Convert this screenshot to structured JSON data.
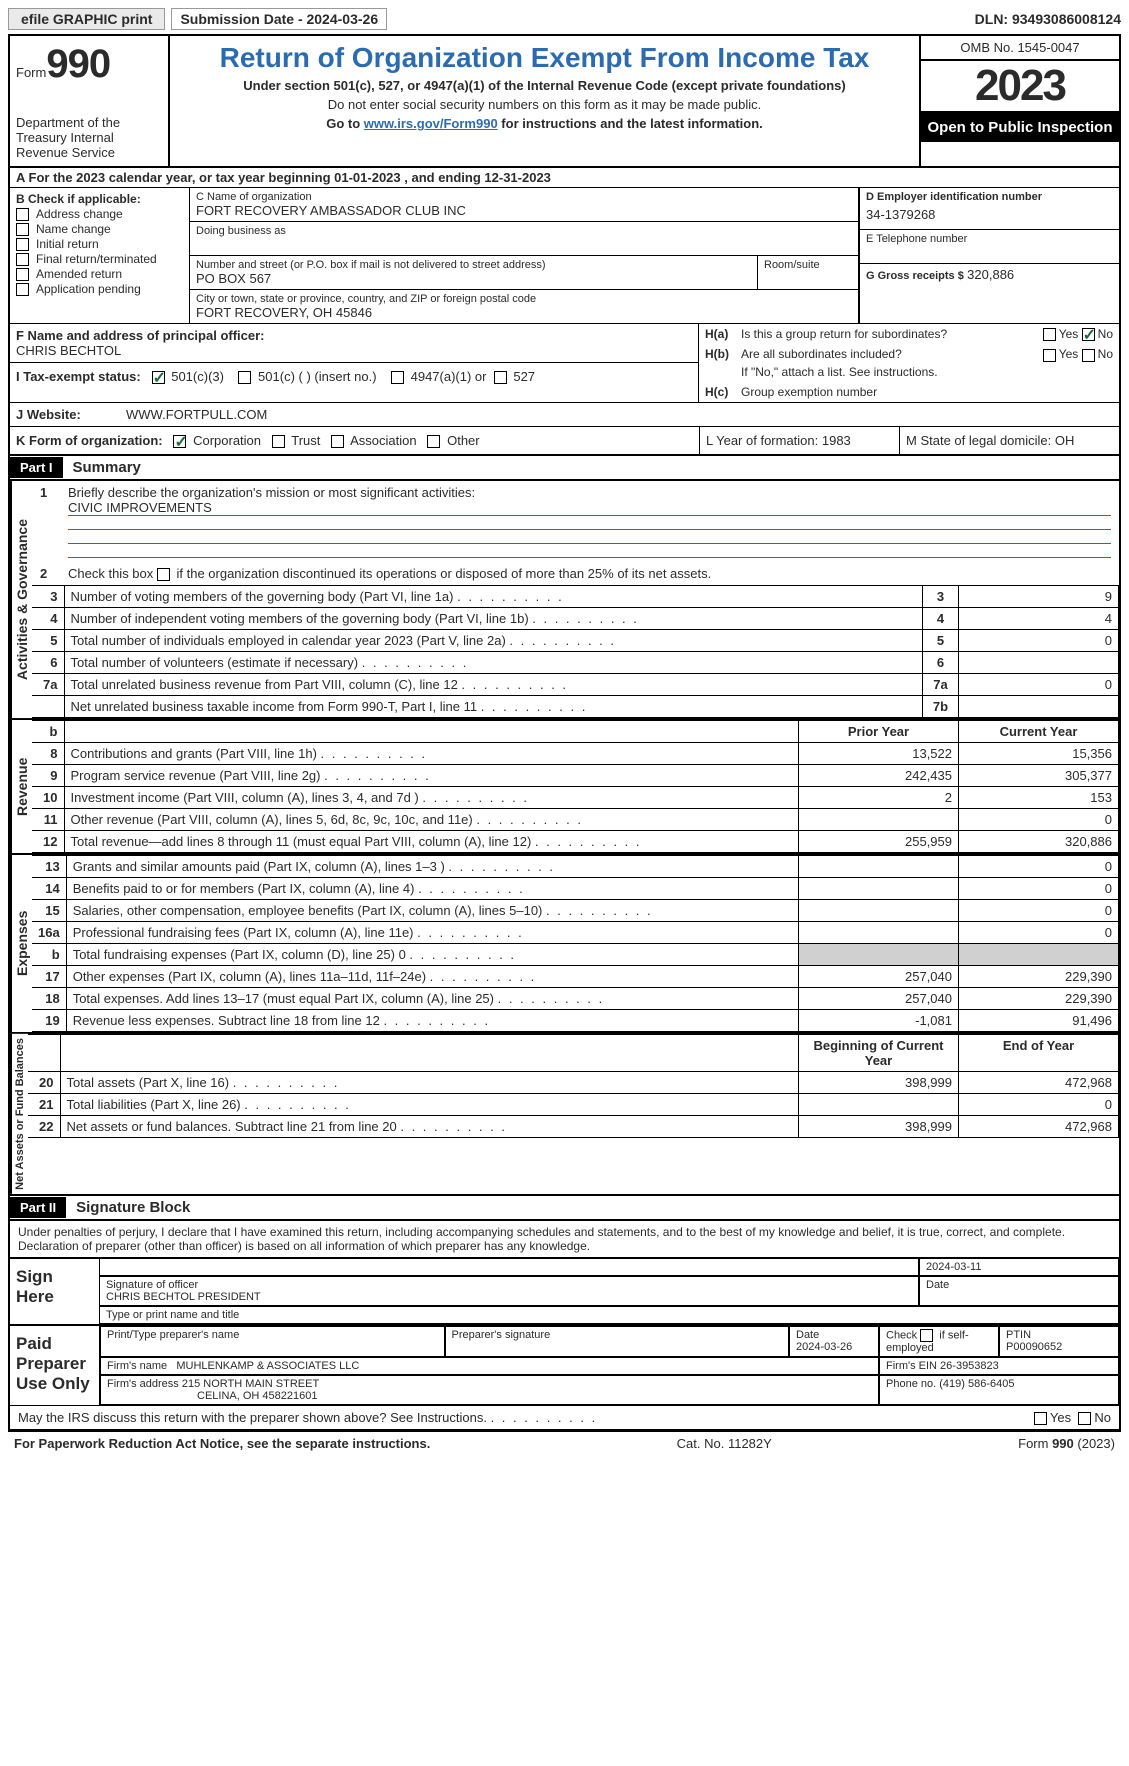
{
  "topbar": {
    "efile": "efile GRAPHIC print",
    "submission": "Submission Date - 2024-03-26",
    "dln": "DLN: 93493086008124"
  },
  "header": {
    "form_prefix": "Form",
    "form_number": "990",
    "dept": "Department of the Treasury Internal Revenue Service",
    "title": "Return of Organization Exempt From Income Tax",
    "sub1": "Under section 501(c), 527, or 4947(a)(1) of the Internal Revenue Code (except private foundations)",
    "sub2": "Do not enter social security numbers on this form as it may be made public.",
    "sub3_pre": "Go to ",
    "sub3_link": "www.irs.gov/Form990",
    "sub3_post": " for instructions and the latest information.",
    "omb": "OMB No. 1545-0047",
    "year": "2023",
    "inspection": "Open to Public Inspection"
  },
  "row_a": "A For the 2023 calendar year, or tax year beginning 01-01-2023    , and ending 12-31-2023",
  "box_b": {
    "header": "B Check if applicable:",
    "opts": [
      "Address change",
      "Name change",
      "Initial return",
      "Final return/terminated",
      "Amended return",
      "Application pending"
    ]
  },
  "box_c": {
    "name_lbl": "C Name of organization",
    "name": "FORT RECOVERY AMBASSADOR CLUB INC",
    "dba_lbl": "Doing business as",
    "street_lbl": "Number and street (or P.O. box if mail is not delivered to street address)",
    "room_lbl": "Room/suite",
    "street": "PO BOX 567",
    "city_lbl": "City or town, state or province, country, and ZIP or foreign postal code",
    "city": "FORT RECOVERY, OH  45846"
  },
  "box_d": {
    "lbl": "D Employer identification number",
    "val": "34-1379268"
  },
  "box_e": {
    "lbl": "E Telephone number",
    "val": ""
  },
  "box_g": {
    "lbl": "G Gross receipts $",
    "val": "320,886"
  },
  "box_f": {
    "lbl": "F  Name and address of principal officer:",
    "name": "CHRIS BECHTOL"
  },
  "box_h": {
    "ha": "H(a)  Is this a group return for subordinates?",
    "hb": "H(b)  Are all subordinates included?",
    "hb_note": "If \"No,\" attach a list. See instructions.",
    "hc": "H(c)  Group exemption number",
    "yes": "Yes",
    "no": "No"
  },
  "box_i": {
    "lbl": "I  Tax-exempt status:",
    "o1": "501(c)(3)",
    "o2": "501(c) (  ) (insert no.)",
    "o3": "4947(a)(1) or",
    "o4": "527"
  },
  "box_j": {
    "lbl": "J  Website:",
    "val": "WWW.FORTPULL.COM"
  },
  "box_k": {
    "lbl": "K Form of organization:",
    "o1": "Corporation",
    "o2": "Trust",
    "o3": "Association",
    "o4": "Other"
  },
  "box_l": "L Year of formation: 1983",
  "box_m": "M State of legal domicile: OH",
  "part1": {
    "hdr": "Part I",
    "title": "Summary"
  },
  "summary": {
    "q1": "Briefly describe the organization's mission or most significant activities:",
    "mission": "CIVIC IMPROVEMENTS",
    "q2": "Check this box      if the organization discontinued its operations or disposed of more than 25% of its net assets.",
    "rows_gov": [
      {
        "n": "3",
        "t": "Number of voting members of the governing body (Part VI, line 1a)",
        "ln": "3",
        "v": "9"
      },
      {
        "n": "4",
        "t": "Number of independent voting members of the governing body (Part VI, line 1b)",
        "ln": "4",
        "v": "4"
      },
      {
        "n": "5",
        "t": "Total number of individuals employed in calendar year 2023 (Part V, line 2a)",
        "ln": "5",
        "v": "0"
      },
      {
        "n": "6",
        "t": "Total number of volunteers (estimate if necessary)",
        "ln": "6",
        "v": ""
      },
      {
        "n": "7a",
        "t": "Total unrelated business revenue from Part VIII, column (C), line 12",
        "ln": "7a",
        "v": "0"
      },
      {
        "n": "",
        "t": "Net unrelated business taxable income from Form 990-T, Part I, line 11",
        "ln": "7b",
        "v": ""
      }
    ],
    "col_hdr": {
      "n": "b",
      "py": "Prior Year",
      "cy": "Current Year"
    },
    "rows_rev": [
      {
        "n": "8",
        "t": "Contributions and grants (Part VIII, line 1h)",
        "py": "13,522",
        "cy": "15,356"
      },
      {
        "n": "9",
        "t": "Program service revenue (Part VIII, line 2g)",
        "py": "242,435",
        "cy": "305,377"
      },
      {
        "n": "10",
        "t": "Investment income (Part VIII, column (A), lines 3, 4, and 7d )",
        "py": "2",
        "cy": "153"
      },
      {
        "n": "11",
        "t": "Other revenue (Part VIII, column (A), lines 5, 6d, 8c, 9c, 10c, and 11e)",
        "py": "",
        "cy": "0"
      },
      {
        "n": "12",
        "t": "Total revenue—add lines 8 through 11 (must equal Part VIII, column (A), line 12)",
        "py": "255,959",
        "cy": "320,886"
      }
    ],
    "rows_exp": [
      {
        "n": "13",
        "t": "Grants and similar amounts paid (Part IX, column (A), lines 1–3 )",
        "py": "",
        "cy": "0"
      },
      {
        "n": "14",
        "t": "Benefits paid to or for members (Part IX, column (A), line 4)",
        "py": "",
        "cy": "0"
      },
      {
        "n": "15",
        "t": "Salaries, other compensation, employee benefits (Part IX, column (A), lines 5–10)",
        "py": "",
        "cy": "0"
      },
      {
        "n": "16a",
        "t": "Professional fundraising fees (Part IX, column (A), line 11e)",
        "py": "",
        "cy": "0"
      },
      {
        "n": "b",
        "t": "Total fundraising expenses (Part IX, column (D), line 25) 0",
        "py": "shade",
        "cy": "shade"
      },
      {
        "n": "17",
        "t": "Other expenses (Part IX, column (A), lines 11a–11d, 11f–24e)",
        "py": "257,040",
        "cy": "229,390"
      },
      {
        "n": "18",
        "t": "Total expenses. Add lines 13–17 (must equal Part IX, column (A), line 25)",
        "py": "257,040",
        "cy": "229,390"
      },
      {
        "n": "19",
        "t": "Revenue less expenses. Subtract line 18 from line 12",
        "py": "-1,081",
        "cy": "91,496"
      }
    ],
    "col_hdr2": {
      "py": "Beginning of Current Year",
      "cy": "End of Year"
    },
    "rows_net": [
      {
        "n": "20",
        "t": "Total assets (Part X, line 16)",
        "py": "398,999",
        "cy": "472,968"
      },
      {
        "n": "21",
        "t": "Total liabilities (Part X, line 26)",
        "py": "",
        "cy": "0"
      },
      {
        "n": "22",
        "t": "Net assets or fund balances. Subtract line 21 from line 20",
        "py": "398,999",
        "cy": "472,968"
      }
    ]
  },
  "vlabels": {
    "gov": "Activities & Governance",
    "rev": "Revenue",
    "exp": "Expenses",
    "net": "Net Assets or Fund Balances"
  },
  "part2": {
    "hdr": "Part II",
    "title": "Signature Block"
  },
  "perjury": "Under penalties of perjury, I declare that I have examined this return, including accompanying schedules and statements, and to the best of my knowledge and belief, it is true, correct, and complete. Declaration of preparer (other than officer) is based on all information of which preparer has any knowledge.",
  "sign": {
    "here": "Sign Here",
    "sig_lbl": "Signature of officer",
    "date_lbl": "Date",
    "date": "2024-03-11",
    "name": "CHRIS BECHTOL PRESIDENT",
    "name_lbl": "Type or print name and title"
  },
  "paid": {
    "hdr": "Paid Preparer Use Only",
    "c1": "Print/Type preparer's name",
    "c2": "Preparer's signature",
    "c3": "Date",
    "c3v": "2024-03-26",
    "c4": "Check       if self-employed",
    "c5": "PTIN",
    "c5v": "P00090652",
    "firm_lbl": "Firm's name",
    "firm": "MUHLENKAMP & ASSOCIATES LLC",
    "ein_lbl": "Firm's EIN",
    "ein": "26-3953823",
    "addr_lbl": "Firm's address",
    "addr1": "215 NORTH MAIN STREET",
    "addr2": "CELINA, OH  458221601",
    "phone_lbl": "Phone no.",
    "phone": "(419) 586-6405"
  },
  "may": {
    "q": "May the IRS discuss this return with the preparer shown above? See Instructions.",
    "yes": "Yes",
    "no": "No"
  },
  "footer": {
    "l": "For Paperwork Reduction Act Notice, see the separate instructions.",
    "c": "Cat. No. 11282Y",
    "r": "Form 990 (2023)"
  }
}
